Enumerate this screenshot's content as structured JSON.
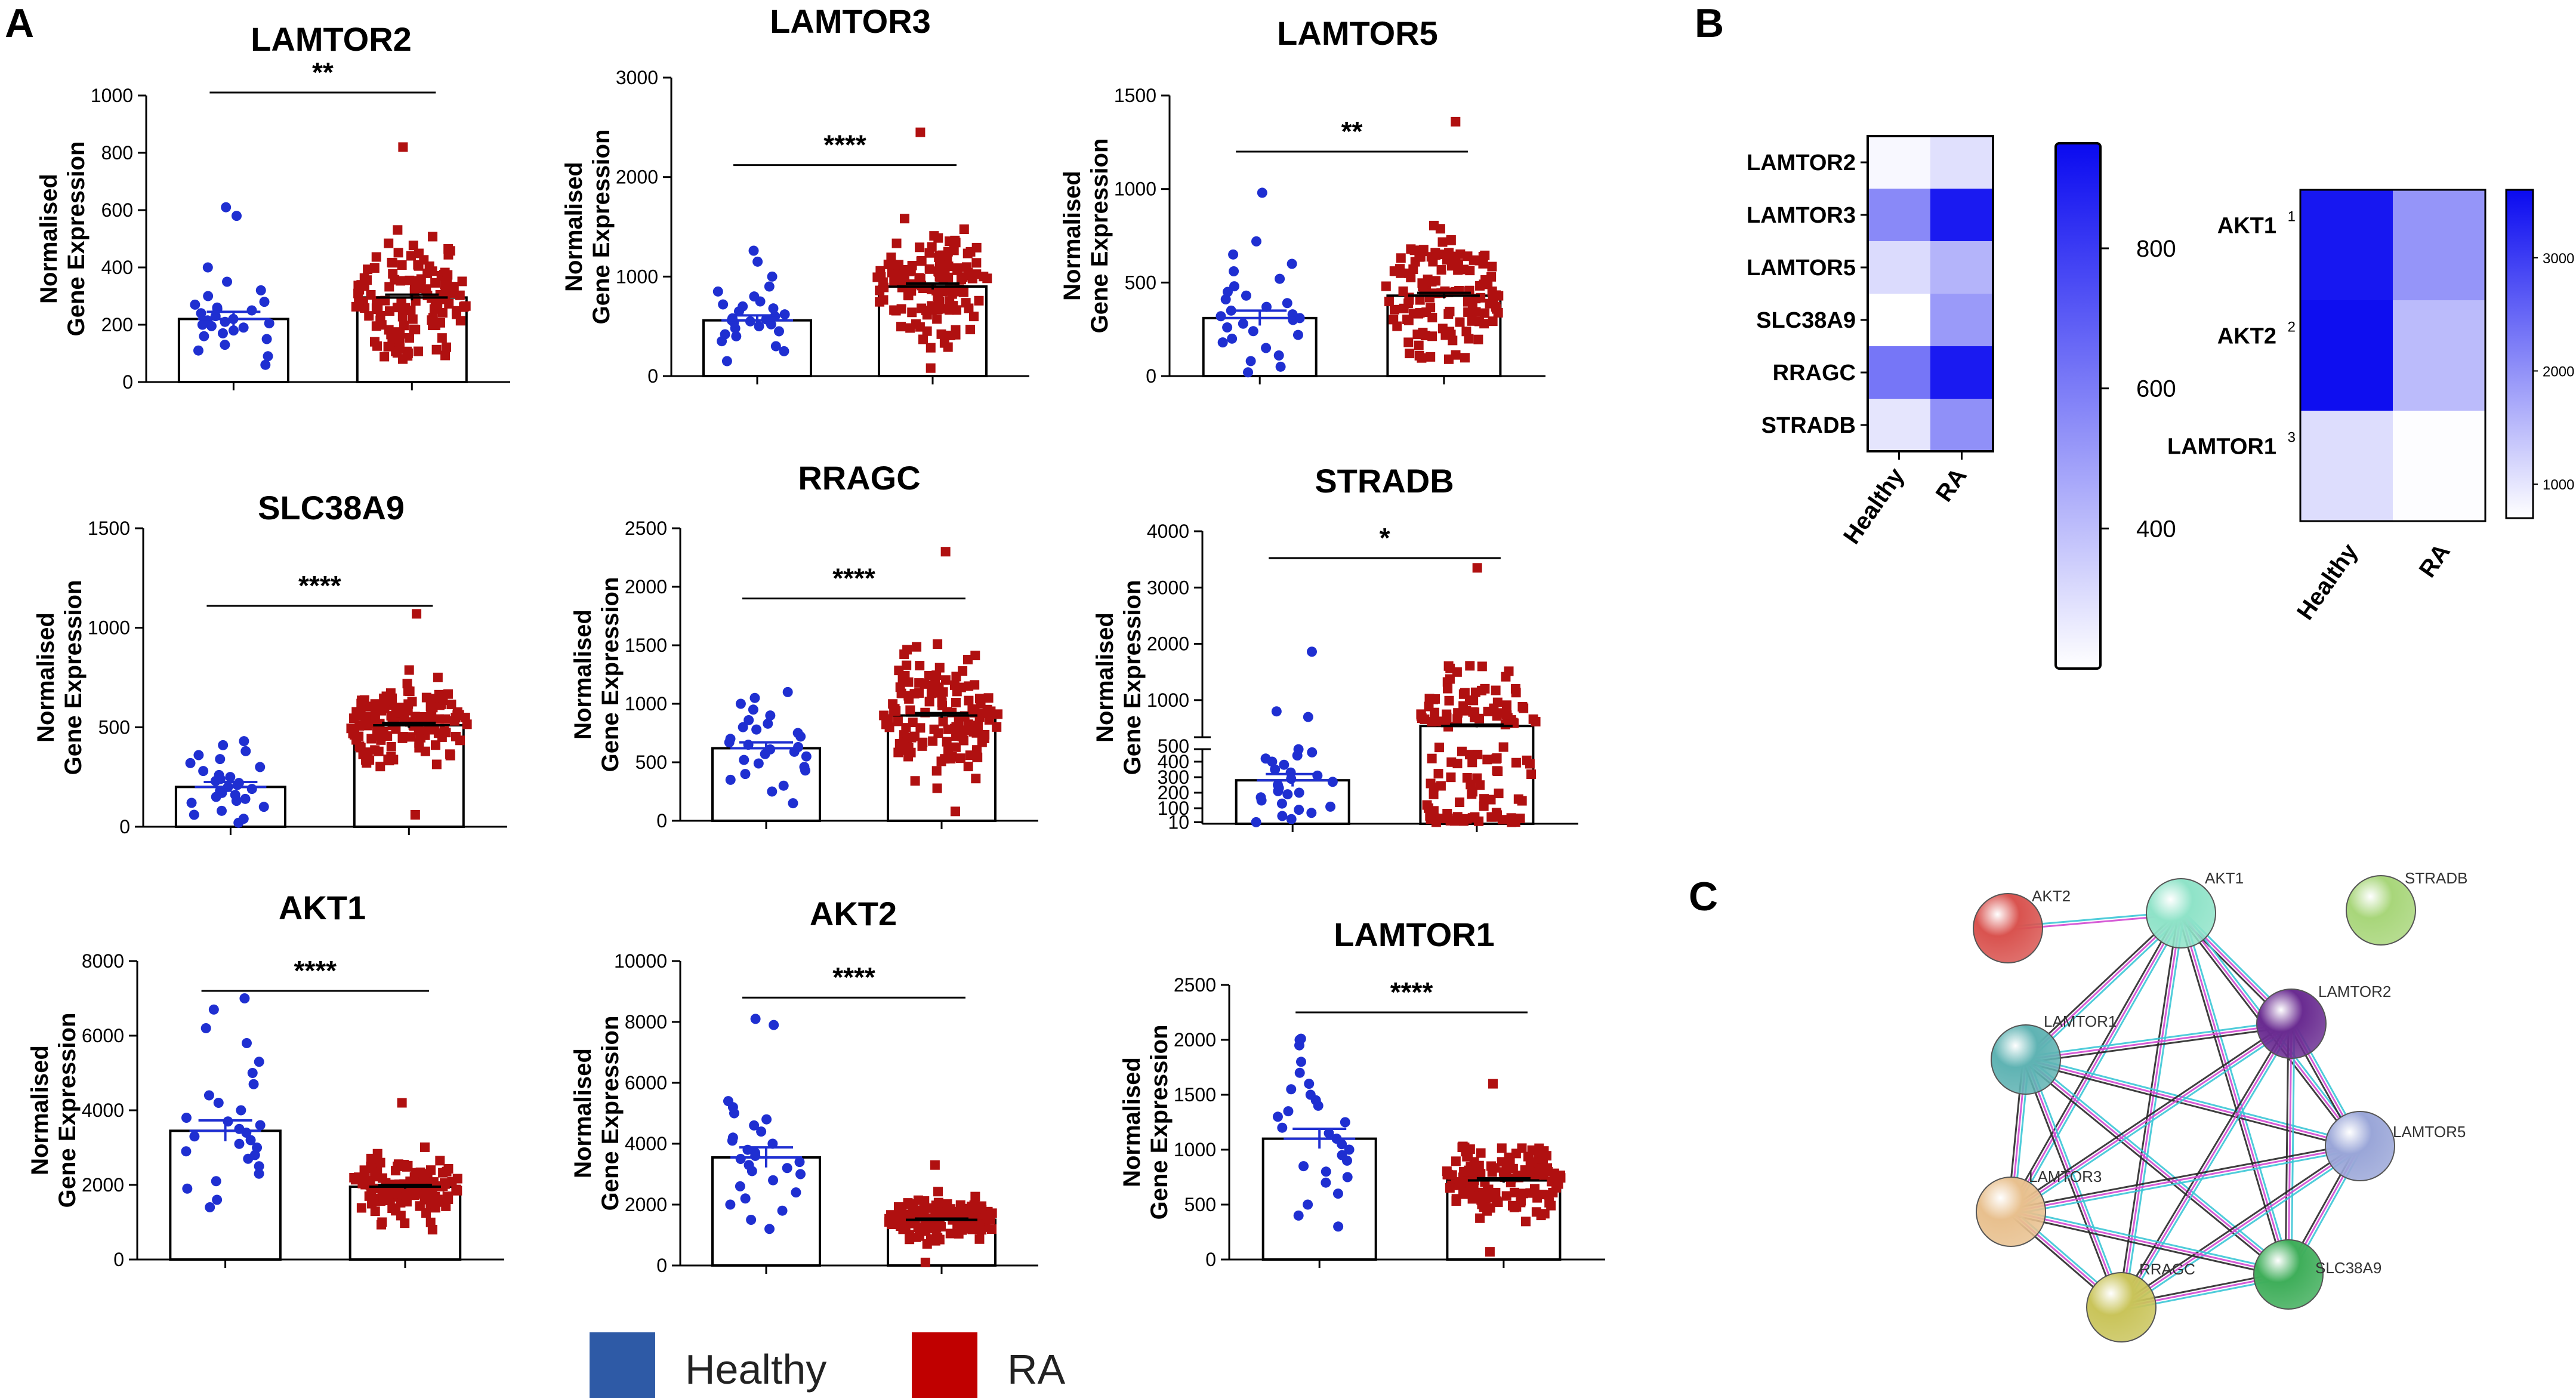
{
  "panel_labels": {
    "a": "A",
    "b": "B",
    "c": "C"
  },
  "colors": {
    "healthy": "#1f2fd1",
    "ra": "#b01010",
    "healthy_legend": "#2e5aa6",
    "ra_legend": "#c00000",
    "heat_max": "#0a0af0",
    "heat_min": "#ffffff"
  },
  "chart_data": [
    {
      "type": "bar",
      "title": "LAMTOR2",
      "ylabel": "Normalised\nGene Expression",
      "categories": [
        "Healthy",
        "RA"
      ],
      "ylim": [
        0,
        1000
      ],
      "ticks": [
        "0",
        "200",
        "400",
        "600",
        "800",
        "1000"
      ],
      "values": [
        220,
        295
      ],
      "sem": [
        25,
        10
      ],
      "n": [
        28,
        130
      ],
      "healthy_points": [
        60,
        90,
        110,
        130,
        150,
        160,
        170,
        180,
        190,
        195,
        200,
        205,
        210,
        215,
        220,
        230,
        240,
        250,
        255,
        260,
        270,
        280,
        300,
        320,
        350,
        400,
        580,
        610
      ],
      "ra_max": 820,
      "ra_min": 80,
      "significance": "**"
    },
    {
      "type": "bar",
      "title": "LAMTOR3",
      "ylabel": "Normalised\nGene Expression",
      "categories": [
        "Healthy",
        "RA"
      ],
      "ylim": [
        0,
        3000
      ],
      "ticks": [
        "0",
        "1000",
        "2000",
        "3000"
      ],
      "values": [
        560,
        900
      ],
      "sem": [
        50,
        30
      ],
      "n": [
        28,
        130
      ],
      "healthy_points": [
        150,
        250,
        300,
        350,
        400,
        420,
        450,
        480,
        500,
        520,
        540,
        550,
        560,
        570,
        580,
        600,
        620,
        650,
        680,
        700,
        720,
        750,
        800,
        850,
        900,
        1000,
        1150,
        1260
      ],
      "ra_max": 2450,
      "ra_min": 80,
      "significance": "****"
    },
    {
      "type": "bar",
      "title": "LAMTOR5",
      "ylabel": "Normalised\nGene Expression",
      "categories": [
        "Healthy",
        "RA"
      ],
      "ylim": [
        0,
        1500
      ],
      "ticks": [
        "0",
        "500",
        "1000",
        "1500"
      ],
      "values": [
        310,
        430
      ],
      "sem": [
        40,
        15
      ],
      "n": [
        28,
        130
      ],
      "healthy_points": [
        20,
        50,
        80,
        110,
        150,
        180,
        200,
        220,
        240,
        260,
        280,
        300,
        310,
        320,
        330,
        350,
        370,
        390,
        410,
        430,
        450,
        480,
        520,
        560,
        600,
        650,
        720,
        980
      ],
      "ra_max": 1360,
      "ra_min": 90,
      "significance": "**"
    },
    {
      "type": "bar",
      "title": "SLC38A9",
      "ylabel": "Normalised\nGene Expression",
      "categories": [
        "Healthy",
        "RA"
      ],
      "ylim": [
        0,
        1500
      ],
      "ticks": [
        "0",
        "500",
        "1000",
        "1500"
      ],
      "values": [
        200,
        510
      ],
      "sem": [
        25,
        12
      ],
      "n": [
        28,
        130
      ],
      "healthy_points": [
        20,
        40,
        60,
        80,
        100,
        120,
        130,
        140,
        150,
        160,
        170,
        180,
        190,
        200,
        210,
        220,
        230,
        240,
        250,
        260,
        280,
        300,
        320,
        340,
        360,
        380,
        410,
        430
      ],
      "ra_max": 1070,
      "ra_min": 60,
      "significance": "****"
    },
    {
      "type": "bar",
      "title": "RRAGC",
      "ylabel": "Normalised\nGene Expression",
      "categories": [
        "Healthy",
        "RA"
      ],
      "ylim": [
        0,
        2500
      ],
      "ticks": [
        "0",
        "500",
        "1000",
        "1500",
        "2000",
        "2500"
      ],
      "values": [
        620,
        900
      ],
      "sem": [
        50,
        20
      ],
      "n": [
        28,
        130
      ],
      "healthy_points": [
        150,
        250,
        300,
        350,
        400,
        430,
        460,
        490,
        520,
        550,
        570,
        590,
        610,
        630,
        650,
        670,
        700,
        720,
        750,
        780,
        800,
        830,
        860,
        900,
        950,
        1000,
        1050,
        1100
      ],
      "ra_max": 2300,
      "ra_min": 80,
      "significance": "****"
    },
    {
      "type": "bar",
      "title": "STRADB",
      "ylabel": "Normalised\nGene Expression",
      "categories": [
        "Healthy",
        "RA"
      ],
      "ylim": [
        0,
        4000
      ],
      "broken_axis": true,
      "ticks_upper": [
        "1000",
        "2000",
        "3000",
        "4000"
      ],
      "ticks_lower": [
        "10",
        "100",
        "200",
        "300",
        "400",
        "500"
      ],
      "values": [
        280,
        540
      ],
      "sem": [
        40,
        25
      ],
      "n": [
        28,
        130
      ],
      "healthy_points": [
        10,
        30,
        50,
        70,
        90,
        110,
        130,
        150,
        170,
        190,
        200,
        210,
        230,
        250,
        270,
        290,
        310,
        330,
        350,
        380,
        400,
        420,
        440,
        460,
        480,
        700,
        800,
        1860
      ],
      "ra_max": 3350,
      "ra_min": 10,
      "significance": "*"
    },
    {
      "type": "bar",
      "title": "AKT1",
      "ylabel": "Normalised\nGene Expression",
      "categories": [
        "Healthy",
        "RA"
      ],
      "ylim": [
        0,
        8000
      ],
      "ticks": [
        "0",
        "2000",
        "4000",
        "6000",
        "8000"
      ],
      "values": [
        3450,
        1950
      ],
      "sem": [
        280,
        50
      ],
      "n": [
        28,
        130
      ],
      "healthy_points": [
        1400,
        1600,
        1900,
        2100,
        2300,
        2500,
        2700,
        2800,
        2900,
        3000,
        3100,
        3200,
        3300,
        3400,
        3500,
        3600,
        3700,
        3800,
        4000,
        4200,
        4400,
        4700,
        5000,
        5300,
        5800,
        6200,
        6700,
        7000
      ],
      "ra_max": 4200,
      "ra_min": 800,
      "significance": "****"
    },
    {
      "type": "bar",
      "title": "AKT2",
      "ylabel": "Normalised\nGene Expression",
      "categories": [
        "Healthy",
        "RA"
      ],
      "ylim": [
        0,
        10000
      ],
      "ticks": [
        "0",
        "2000",
        "4000",
        "6000",
        "8000",
        "10000"
      ],
      "values": [
        3550,
        1500
      ],
      "sem": [
        330,
        40
      ],
      "n": [
        28,
        130
      ],
      "healthy_points": [
        1200,
        1500,
        1800,
        2000,
        2200,
        2400,
        2600,
        2800,
        3000,
        3100,
        3200,
        3300,
        3400,
        3500,
        3600,
        3700,
        3800,
        4000,
        4200,
        4400,
        4600,
        4800,
        5000,
        5200,
        5400,
        7900,
        8100,
        4100
      ],
      "ra_max": 3300,
      "ra_min": 100,
      "significance": "****"
    },
    {
      "type": "bar",
      "title": "LAMTOR1",
      "ylabel": "Normalised\nGene Expression",
      "categories": [
        "Healthy",
        "RA"
      ],
      "ylim": [
        0,
        2500
      ],
      "ticks": [
        "0",
        "500",
        "1000",
        "1500",
        "2000",
        "2500"
      ],
      "values": [
        1100,
        720
      ],
      "sem": [
        90,
        20
      ],
      "n": [
        28,
        130
      ],
      "healthy_points": [
        300,
        400,
        500,
        600,
        700,
        750,
        800,
        850,
        900,
        950,
        1000,
        1050,
        1100,
        1150,
        1200,
        1250,
        1300,
        1350,
        1400,
        1450,
        1500,
        1550,
        1600,
        1700,
        1800,
        1950,
        2000,
        2010
      ],
      "ra_max": 1600,
      "ra_min": 70,
      "significance": "****"
    },
    {
      "type": "heatmap",
      "rows": [
        "LAMTOR2",
        "LAMTOR3",
        "LAMTOR5",
        "SLC38A9",
        "RRAGC",
        "STRADB"
      ],
      "cols": [
        "Healthy",
        "RA"
      ],
      "values": [
        [
          220,
          295
        ],
        [
          560,
          900
        ],
        [
          310,
          430
        ],
        [
          200,
          510
        ],
        [
          620,
          900
        ],
        [
          280,
          540
        ]
      ],
      "color_min": 200,
      "color_max": 950,
      "colorbar_ticks": [
        "800",
        "600",
        "400"
      ],
      "colorbar_tick_values": [
        800,
        600,
        400
      ]
    },
    {
      "type": "heatmap",
      "rows": [
        "AKT1",
        "AKT2",
        "LAMTOR1"
      ],
      "row_index": [
        "1",
        "2",
        "3"
      ],
      "cols": [
        "Healthy",
        "RA"
      ],
      "values": [
        [
          3450,
          1950
        ],
        [
          3550,
          1500
        ],
        [
          1100,
          720
        ]
      ],
      "color_min": 700,
      "color_max": 3600,
      "colorbar_ticks": [
        "3000",
        "2000",
        "1000"
      ],
      "colorbar_tick_values": [
        3000,
        2000,
        1000
      ]
    }
  ],
  "network": {
    "nodes": [
      {
        "id": "AKT2",
        "color": "#d9534f"
      },
      {
        "id": "AKT1",
        "color": "#8fe3c8"
      },
      {
        "id": "STRADB",
        "color": "#a8d67a"
      },
      {
        "id": "LAMTOR2",
        "color": "#6a2c91"
      },
      {
        "id": "LAMTOR1",
        "color": "#5fb3b3"
      },
      {
        "id": "LAMTOR5",
        "color": "#9aa6d8"
      },
      {
        "id": "LAMTOR3",
        "color": "#e8c08e"
      },
      {
        "id": "SLC38A9",
        "color": "#3fae5a"
      },
      {
        "id": "RRAGC",
        "color": "#c9c45a"
      }
    ],
    "edges": [
      [
        "AKT2",
        "AKT1"
      ],
      [
        "AKT1",
        "LAMTOR1"
      ],
      [
        "AKT1",
        "LAMTOR2"
      ],
      [
        "AKT1",
        "LAMTOR3"
      ],
      [
        "AKT1",
        "SLC38A9"
      ],
      [
        "AKT1",
        "RRAGC"
      ],
      [
        "AKT1",
        "LAMTOR5"
      ],
      [
        "LAMTOR1",
        "LAMTOR2"
      ],
      [
        "LAMTOR1",
        "LAMTOR5"
      ],
      [
        "LAMTOR1",
        "LAMTOR3"
      ],
      [
        "LAMTOR1",
        "SLC38A9"
      ],
      [
        "LAMTOR1",
        "RRAGC"
      ],
      [
        "LAMTOR2",
        "LAMTOR5"
      ],
      [
        "LAMTOR2",
        "LAMTOR3"
      ],
      [
        "LAMTOR2",
        "SLC38A9"
      ],
      [
        "LAMTOR2",
        "RRAGC"
      ],
      [
        "LAMTOR5",
        "LAMTOR3"
      ],
      [
        "LAMTOR5",
        "SLC38A9"
      ],
      [
        "LAMTOR5",
        "RRAGC"
      ],
      [
        "LAMTOR3",
        "SLC38A9"
      ],
      [
        "LAMTOR3",
        "RRAGC"
      ],
      [
        "SLC38A9",
        "RRAGC"
      ]
    ]
  },
  "legend": {
    "healthy": "Healthy",
    "ra": "RA"
  }
}
